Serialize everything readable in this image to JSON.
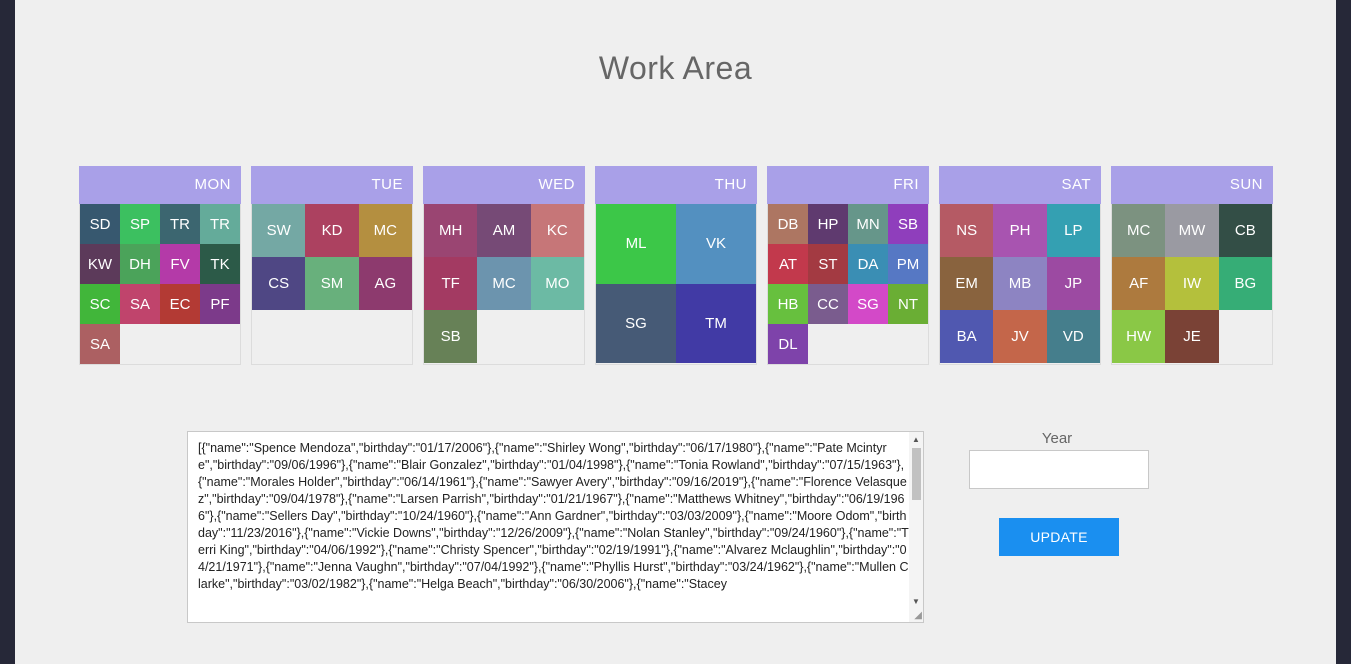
{
  "title": "Work Area",
  "days": [
    {
      "label": "MON",
      "cols": 4,
      "tiles": [
        {
          "initials": "SD",
          "color": "#37586f"
        },
        {
          "initials": "SP",
          "color": "#3cc060"
        },
        {
          "initials": "TR",
          "color": "#3c6670"
        },
        {
          "initials": "TR",
          "color": "#64ab9a"
        },
        {
          "initials": "KW",
          "color": "#5c3a5a"
        },
        {
          "initials": "DH",
          "color": "#4ba35a"
        },
        {
          "initials": "FV",
          "color": "#b43aa8"
        },
        {
          "initials": "TK",
          "color": "#2c5a48"
        },
        {
          "initials": "SC",
          "color": "#41b63a"
        },
        {
          "initials": "SA",
          "color": "#c0446c"
        },
        {
          "initials": "EC",
          "color": "#b33a34"
        },
        {
          "initials": "PF",
          "color": "#7c3a8a"
        },
        {
          "initials": "SA",
          "color": "#ac6062"
        }
      ]
    },
    {
      "label": "TUE",
      "cols": 3,
      "tiles": [
        {
          "initials": "SW",
          "color": "#74a8a4"
        },
        {
          "initials": "KD",
          "color": "#ac4160"
        },
        {
          "initials": "MC",
          "color": "#b48f40"
        },
        {
          "initials": "CS",
          "color": "#4f4784"
        },
        {
          "initials": "SM",
          "color": "#68b07c"
        },
        {
          "initials": "AG",
          "color": "#8d3a6e"
        }
      ]
    },
    {
      "label": "WED",
      "cols": 3,
      "tiles": [
        {
          "initials": "MH",
          "color": "#9a4572"
        },
        {
          "initials": "AM",
          "color": "#764a76"
        },
        {
          "initials": "KC",
          "color": "#c67678"
        },
        {
          "initials": "TF",
          "color": "#a33a62"
        },
        {
          "initials": "MC",
          "color": "#6c94ae"
        },
        {
          "initials": "MO",
          "color": "#6cbaa4"
        },
        {
          "initials": "SB",
          "color": "#678157"
        }
      ]
    },
    {
      "label": "THU",
      "cols": 2,
      "tiles": [
        {
          "initials": "ML",
          "color": "#3cc748"
        },
        {
          "initials": "VK",
          "color": "#5390c0"
        },
        {
          "initials": "SG",
          "color": "#465a76"
        },
        {
          "initials": "TM",
          "color": "#413aa5"
        }
      ]
    },
    {
      "label": "FRI",
      "cols": 4,
      "tiles": [
        {
          "initials": "DB",
          "color": "#ad7662"
        },
        {
          "initials": "HP",
          "color": "#5f3a6f"
        },
        {
          "initials": "MN",
          "color": "#66968a"
        },
        {
          "initials": "SB",
          "color": "#8f3ebc"
        },
        {
          "initials": "AT",
          "color": "#c2394c"
        },
        {
          "initials": "ST",
          "color": "#a33a42"
        },
        {
          "initials": "DA",
          "color": "#3a8eb4"
        },
        {
          "initials": "PM",
          "color": "#5678c4"
        },
        {
          "initials": "HB",
          "color": "#67c03e"
        },
        {
          "initials": "CC",
          "color": "#7a5c8e"
        },
        {
          "initials": "SG",
          "color": "#d349c8"
        },
        {
          "initials": "NT",
          "color": "#6aae34"
        },
        {
          "initials": "DL",
          "color": "#7e43aa"
        }
      ]
    },
    {
      "label": "SAT",
      "cols": 3,
      "tiles": [
        {
          "initials": "NS",
          "color": "#b55a64"
        },
        {
          "initials": "PH",
          "color": "#a854b0"
        },
        {
          "initials": "LP",
          "color": "#34a0b2"
        },
        {
          "initials": "EM",
          "color": "#89633e"
        },
        {
          "initials": "MB",
          "color": "#8d84c2"
        },
        {
          "initials": "JP",
          "color": "#9c4aa2"
        },
        {
          "initials": "BA",
          "color": "#5058b0"
        },
        {
          "initials": "JV",
          "color": "#c4664a"
        },
        {
          "initials": "VD",
          "color": "#457e8c"
        }
      ]
    },
    {
      "label": "SUN",
      "cols": 3,
      "tiles": [
        {
          "initials": "MC",
          "color": "#7c9280"
        },
        {
          "initials": "MW",
          "color": "#9a9aa2"
        },
        {
          "initials": "CB",
          "color": "#334e46"
        },
        {
          "initials": "AF",
          "color": "#ad7a3e"
        },
        {
          "initials": "IW",
          "color": "#b4c03c"
        },
        {
          "initials": "BG",
          "color": "#36ad76"
        },
        {
          "initials": "HW",
          "color": "#8ac846"
        },
        {
          "initials": "JE",
          "color": "#7a4236"
        }
      ]
    }
  ],
  "json_text": "[{\"name\":\"Spence Mendoza\",\"birthday\":\"01/17/2006\"},{\"name\":\"Shirley Wong\",\"birthday\":\"06/17/1980\"},{\"name\":\"Pate Mcintyre\",\"birthday\":\"09/06/1996\"},{\"name\":\"Blair Gonzalez\",\"birthday\":\"01/04/1998\"},{\"name\":\"Tonia Rowland\",\"birthday\":\"07/15/1963\"},{\"name\":\"Morales Holder\",\"birthday\":\"06/14/1961\"},{\"name\":\"Sawyer Avery\",\"birthday\":\"09/16/2019\"},{\"name\":\"Florence Velasquez\",\"birthday\":\"09/04/1978\"},{\"name\":\"Larsen Parrish\",\"birthday\":\"01/21/1967\"},{\"name\":\"Matthews Whitney\",\"birthday\":\"06/19/1966\"},{\"name\":\"Sellers Day\",\"birthday\":\"10/24/1960\"},{\"name\":\"Ann Gardner\",\"birthday\":\"03/03/2009\"},{\"name\":\"Moore Odom\",\"birthday\":\"11/23/2016\"},{\"name\":\"Vickie Downs\",\"birthday\":\"12/26/2009\"},{\"name\":\"Nolan Stanley\",\"birthday\":\"09/24/1960\"},{\"name\":\"Terri King\",\"birthday\":\"04/06/1992\"},{\"name\":\"Christy Spencer\",\"birthday\":\"02/19/1991\"},{\"name\":\"Alvarez Mclaughlin\",\"birthday\":\"04/21/1971\"},{\"name\":\"Jenna Vaughn\",\"birthday\":\"07/04/1992\"},{\"name\":\"Phyllis Hurst\",\"birthday\":\"03/24/1962\"},{\"name\":\"Mullen Clarke\",\"birthday\":\"03/02/1982\"},{\"name\":\"Helga Beach\",\"birthday\":\"06/30/2006\"},{\"name\":\"Stacey",
  "year_label": "Year",
  "year_value": "",
  "update_label": "UPDATE"
}
